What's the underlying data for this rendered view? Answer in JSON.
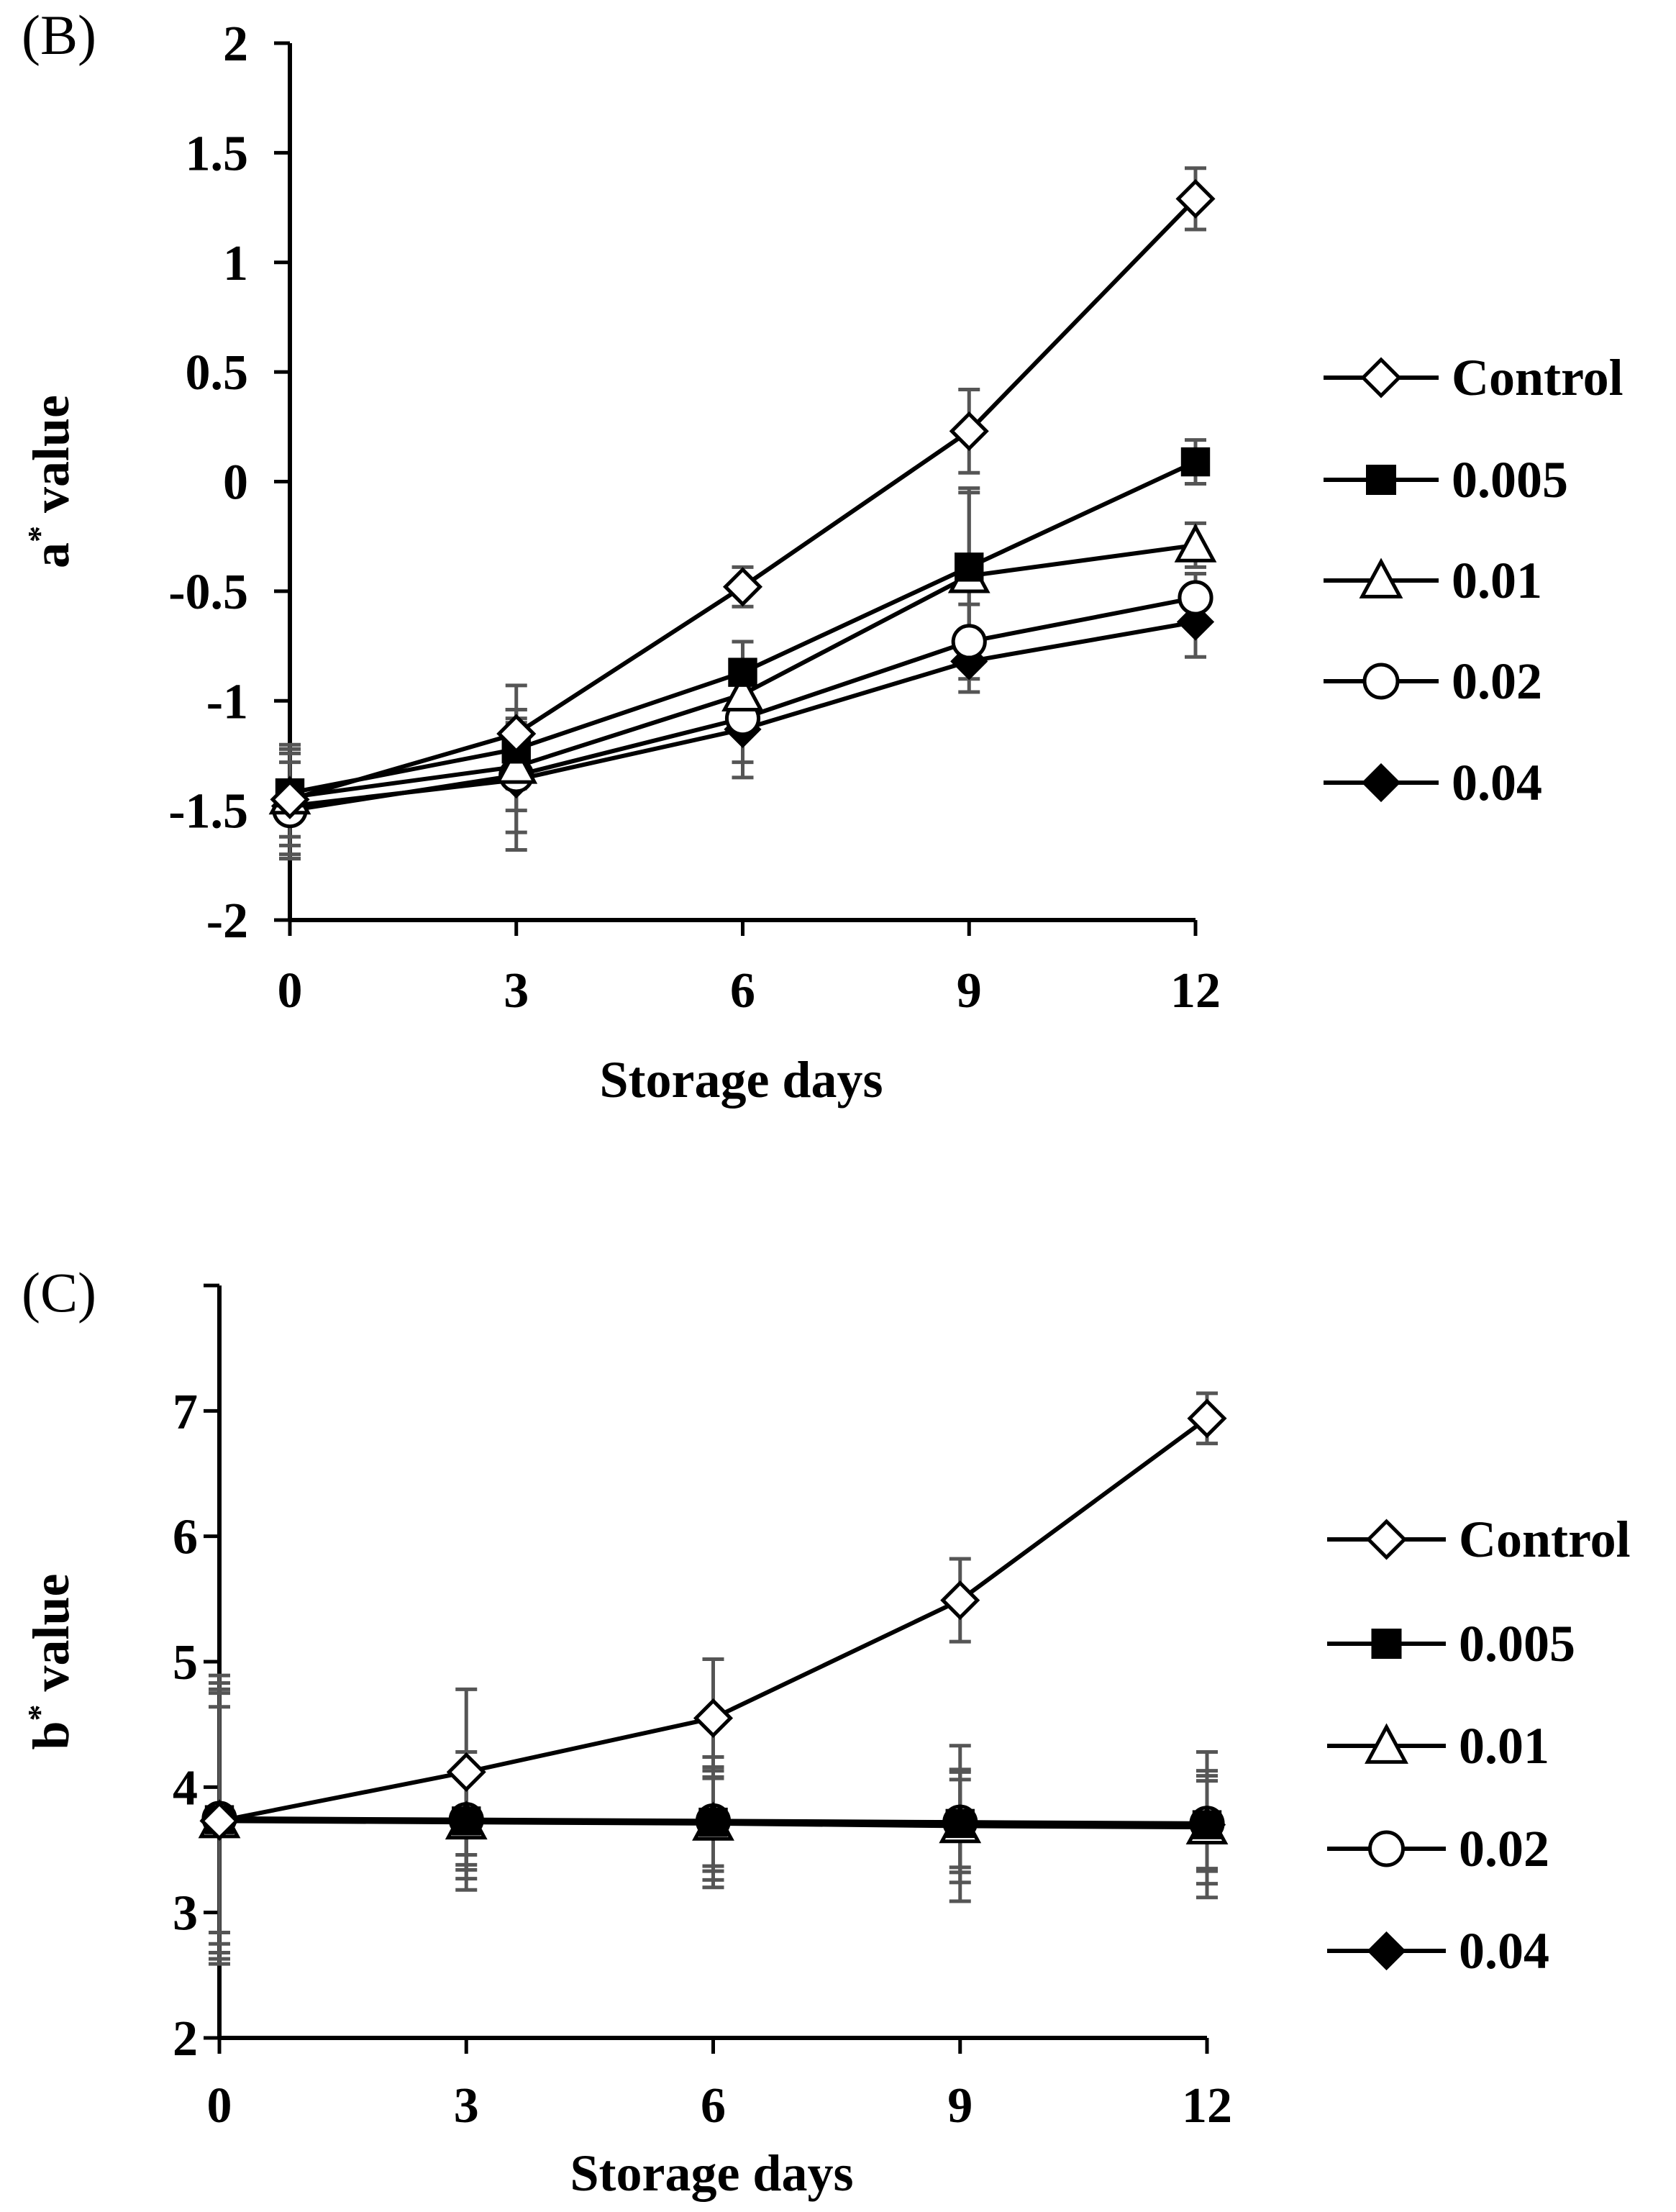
{
  "chart_data": [
    {
      "type": "line",
      "panel_label": "(B)",
      "title": "",
      "xlabel": "Storage days",
      "ylabel": "a",
      "ylabel_sup": "*",
      "ylabel_suffix": " value",
      "x": [
        0,
        3,
        6,
        9,
        12
      ],
      "x_ticks": [
        "0",
        "3",
        "6",
        "9",
        "12"
      ],
      "xlim": [
        0,
        12
      ],
      "ylim": [
        -2,
        2
      ],
      "y_ticks": [
        {
          "v": 2,
          "label": "2"
        },
        {
          "v": 1.5,
          "label": "1.5"
        },
        {
          "v": 1,
          "label": "1"
        },
        {
          "v": 0.5,
          "label": "0.5"
        },
        {
          "v": 0,
          "label": "0"
        },
        {
          "v": -0.5,
          "label": "-0.5"
        },
        {
          "v": -1,
          "label": "-1"
        },
        {
          "v": -1.5,
          "label": "-1.5"
        },
        {
          "v": -2,
          "label": "-2"
        }
      ],
      "grid": false,
      "legend_position": "right",
      "series": [
        {
          "name": "Control",
          "marker": "diamond-open",
          "values": [
            -1.45,
            -1.15,
            -0.48,
            0.23,
            1.29
          ],
          "errors": [
            0.25,
            0.22,
            0.09,
            0.19,
            0.14
          ]
        },
        {
          "name": "0.005",
          "marker": "square-filled",
          "values": [
            -1.42,
            -1.22,
            -0.87,
            -0.39,
            0.09
          ],
          "errors": [
            0.2,
            0.18,
            0.14,
            0.36,
            0.1
          ]
        },
        {
          "name": "0.01",
          "marker": "triangle-open",
          "values": [
            -1.44,
            -1.3,
            -0.97,
            -0.43,
            -0.29
          ],
          "errors": [
            0.22,
            0.2,
            0.15,
            0.38,
            0.1
          ]
        },
        {
          "name": "0.02",
          "marker": "circle-open",
          "values": [
            -1.5,
            -1.34,
            -1.08,
            -0.73,
            -0.53
          ],
          "errors": [
            0.22,
            0.26,
            0.2,
            0.17,
            0.11
          ]
        },
        {
          "name": "0.04",
          "marker": "diamond-filled",
          "values": [
            -1.48,
            -1.36,
            -1.13,
            -0.82,
            -0.64
          ],
          "errors": [
            0.24,
            0.32,
            0.22,
            0.14,
            0.16
          ]
        }
      ]
    },
    {
      "type": "line",
      "panel_label": "(C)",
      "title": "",
      "xlabel": "Storage days",
      "ylabel": "b",
      "ylabel_sup": "*",
      "ylabel_suffix": " value",
      "x": [
        0,
        3,
        6,
        9,
        12
      ],
      "x_ticks": [
        "0",
        "3",
        "6",
        "9",
        "12"
      ],
      "xlim": [
        0,
        12
      ],
      "ylim": [
        2,
        8
      ],
      "y_ticks": [
        {
          "v": 8,
          "label": ""
        },
        {
          "v": 7,
          "label": "7"
        },
        {
          "v": 6,
          "label": "6"
        },
        {
          "v": 5,
          "label": "5"
        },
        {
          "v": 4,
          "label": "4"
        },
        {
          "v": 3,
          "label": "3"
        },
        {
          "v": 2,
          "label": "2"
        }
      ],
      "grid": false,
      "legend_position": "right",
      "series": [
        {
          "name": "Control",
          "marker": "diamond-open",
          "values": [
            3.73,
            4.12,
            4.55,
            5.49,
            6.94
          ],
          "errors": [
            1.1,
            0.66,
            0.47,
            0.33,
            0.2
          ]
        },
        {
          "name": "0.005",
          "marker": "square-filled",
          "values": [
            3.74,
            3.73,
            3.72,
            3.71,
            3.7
          ],
          "errors": [
            1.15,
            0.55,
            0.52,
            0.62,
            0.58
          ]
        },
        {
          "name": "0.01",
          "marker": "triangle-open",
          "values": [
            3.73,
            3.72,
            3.71,
            3.69,
            3.68
          ],
          "errors": [
            1.05,
            0.45,
            0.45,
            0.45,
            0.45
          ]
        },
        {
          "name": "0.02",
          "marker": "circle-open",
          "values": [
            3.75,
            3.74,
            3.73,
            3.72,
            3.71
          ],
          "errors": [
            1.0,
            0.4,
            0.4,
            0.4,
            0.38
          ]
        },
        {
          "name": "0.04",
          "marker": "diamond-filled",
          "values": [
            3.74,
            3.73,
            3.72,
            3.71,
            3.7
          ],
          "errors": [
            0.9,
            0.35,
            0.35,
            0.35,
            0.35
          ]
        }
      ]
    }
  ]
}
